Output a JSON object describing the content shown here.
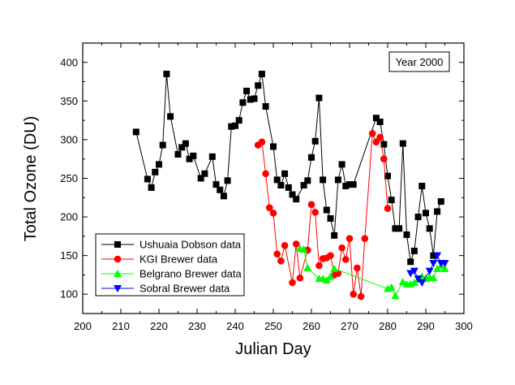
{
  "chart_data": {
    "type": "line",
    "title": "",
    "xlabel": "Julian Day",
    "ylabel": "Total Ozone (DU)",
    "xlim": [
      200,
      300
    ],
    "ylim": [
      75,
      425
    ],
    "xticks": [
      200,
      210,
      220,
      230,
      240,
      250,
      260,
      270,
      280,
      290,
      300
    ],
    "yticks": [
      100,
      150,
      200,
      250,
      300,
      350,
      400
    ],
    "annotation": "Year 2000",
    "legend_position": "bottom-left",
    "grid": false,
    "series": [
      {
        "name": "Ushuaia Dobson data",
        "marker": "square",
        "color": "#000000",
        "points": [
          [
            214,
            310
          ],
          [
            217,
            249
          ],
          [
            218,
            238
          ],
          [
            219,
            258
          ],
          [
            220,
            268
          ],
          [
            221,
            293
          ],
          [
            222,
            385
          ],
          [
            223,
            330
          ],
          [
            225,
            281
          ],
          [
            226,
            290
          ],
          [
            227,
            295
          ],
          [
            228,
            275
          ],
          [
            229,
            279
          ],
          [
            231,
            250
          ],
          [
            232,
            256
          ],
          [
            234,
            278
          ],
          [
            235,
            242
          ],
          [
            236,
            235
          ],
          [
            237,
            227
          ],
          [
            238,
            247
          ],
          [
            239,
            317
          ],
          [
            240,
            318
          ],
          [
            241,
            325
          ],
          [
            242,
            348
          ],
          [
            243,
            363
          ],
          [
            244,
            352
          ],
          [
            245,
            353
          ],
          [
            246,
            370
          ],
          [
            247,
            385
          ],
          [
            248,
            343
          ],
          [
            250,
            291
          ],
          [
            251,
            248
          ],
          [
            252,
            241
          ],
          [
            253,
            256
          ],
          [
            254,
            238
          ],
          [
            255,
            229
          ],
          [
            256,
            223
          ],
          [
            258,
            241
          ],
          [
            259,
            247
          ],
          [
            260,
            277
          ],
          [
            261,
            298
          ],
          [
            262,
            354
          ],
          [
            263,
            248
          ],
          [
            264,
            209
          ],
          [
            265,
            198
          ],
          [
            266,
            176
          ],
          [
            267,
            248
          ],
          [
            268,
            268
          ],
          [
            269,
            240
          ],
          [
            270,
            242
          ],
          [
            271,
            242
          ],
          [
            277,
            328
          ],
          [
            278,
            323
          ],
          [
            279,
            294
          ],
          [
            280,
            253
          ],
          [
            281,
            222
          ],
          [
            282,
            185
          ],
          [
            283,
            185
          ],
          [
            284,
            295
          ],
          [
            285,
            177
          ],
          [
            286,
            142
          ],
          [
            287,
            156
          ],
          [
            288,
            200
          ],
          [
            289,
            240
          ],
          [
            290,
            205
          ],
          [
            291,
            185
          ],
          [
            292,
            150
          ],
          [
            293,
            207
          ],
          [
            294,
            220
          ]
        ]
      },
      {
        "name": "KGI Brewer data",
        "marker": "circle",
        "color": "#ff0000",
        "points": [
          [
            246,
            293
          ],
          [
            247,
            297
          ],
          [
            248,
            256
          ],
          [
            249,
            212
          ],
          [
            250,
            205
          ],
          [
            251,
            152
          ],
          [
            252,
            143
          ],
          [
            253,
            163
          ],
          [
            255,
            115
          ],
          [
            256,
            165
          ],
          [
            257,
            121
          ],
          [
            259,
            157
          ],
          [
            260,
            216
          ],
          [
            261,
            206
          ],
          [
            262,
            137
          ],
          [
            263,
            146
          ],
          [
            264,
            147
          ],
          [
            265,
            150
          ],
          [
            266,
            125
          ],
          [
            267,
            127
          ],
          [
            268,
            160
          ],
          [
            269,
            145
          ],
          [
            270,
            172
          ],
          [
            271,
            100
          ],
          [
            272,
            134
          ],
          [
            273,
            97
          ],
          [
            274,
            172
          ],
          [
            276,
            308
          ],
          [
            277,
            297
          ],
          [
            278,
            303
          ],
          [
            279,
            275
          ],
          [
            280,
            211
          ]
        ]
      },
      {
        "name": "Belgrano Brewer data",
        "marker": "triangle-up",
        "color": "#00ff00",
        "points": [
          [
            257,
            159
          ],
          [
            258,
            158
          ],
          [
            259,
            134
          ],
          [
            262,
            120
          ],
          [
            263,
            120
          ],
          [
            264,
            118
          ],
          [
            265,
            123
          ],
          [
            266,
            133
          ],
          [
            280,
            107
          ],
          [
            281,
            109
          ],
          [
            282,
            98
          ],
          [
            284,
            116
          ],
          [
            285,
            113
          ],
          [
            286,
            113
          ],
          [
            287,
            115
          ],
          [
            288,
            119
          ],
          [
            289,
            123
          ],
          [
            290,
            120
          ],
          [
            291,
            122
          ],
          [
            292,
            121
          ],
          [
            293,
            133
          ],
          [
            294,
            137
          ],
          [
            295,
            133
          ]
        ]
      },
      {
        "name": "Sobral Brewer data",
        "marker": "triangle-down",
        "color": "#0000ff",
        "points": [
          [
            286,
            127
          ],
          [
            287,
            130
          ],
          [
            288,
            120
          ],
          [
            289,
            115
          ],
          [
            291,
            130
          ],
          [
            292,
            140
          ],
          [
            293,
            150
          ],
          [
            294,
            140
          ],
          [
            295,
            140
          ]
        ]
      }
    ]
  }
}
